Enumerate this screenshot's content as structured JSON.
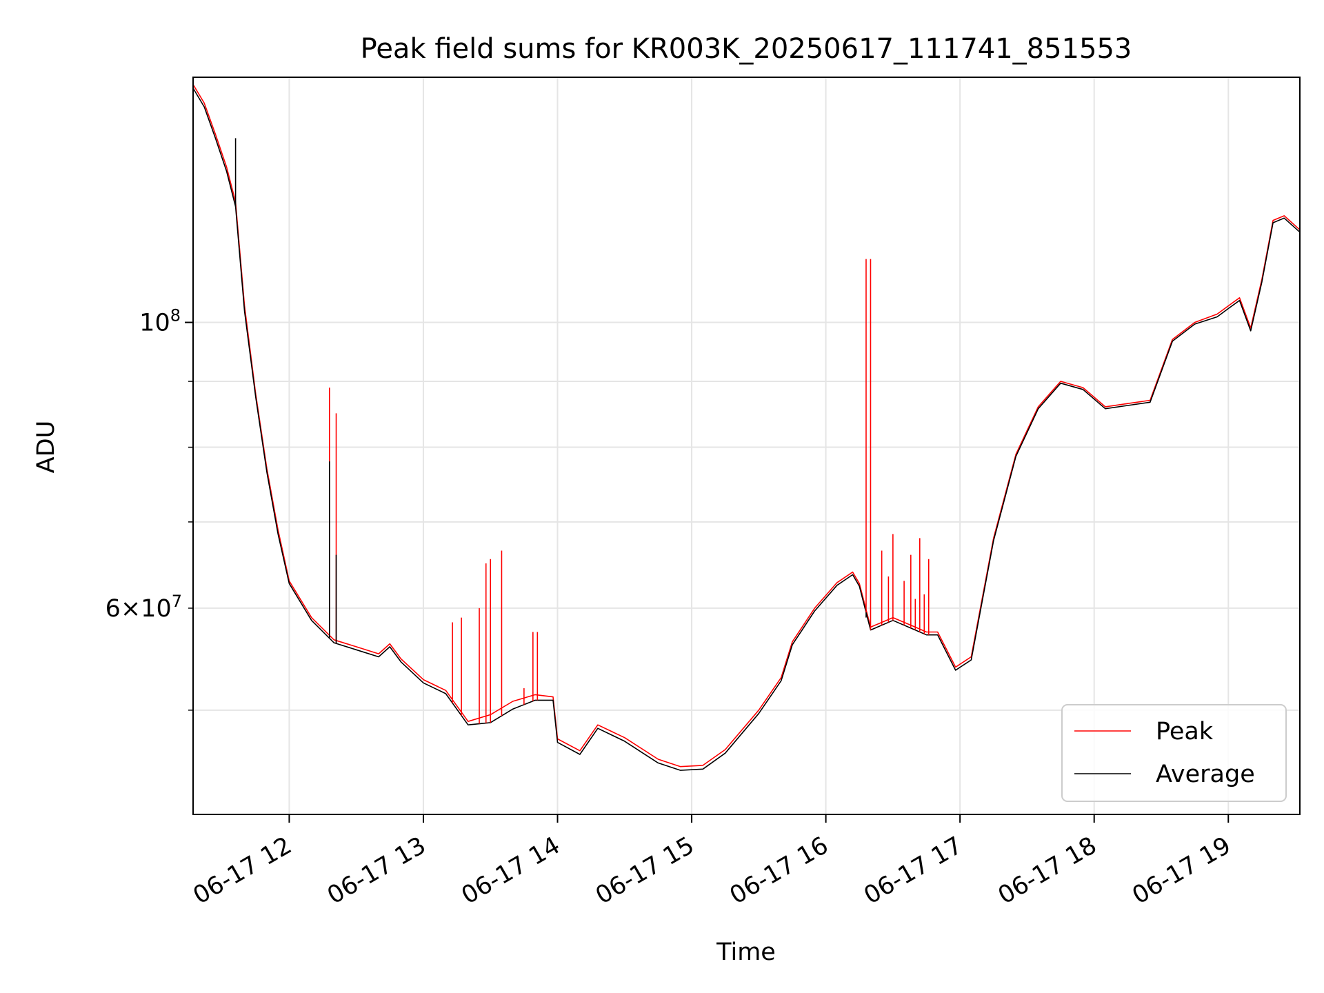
{
  "chart_data": {
    "type": "line",
    "title": "Peak field sums for KR003K_20250617_111741_851553",
    "xlabel": "Time",
    "ylabel": "ADU",
    "x_range": [
      "2025-06-17 11:17",
      "2025-06-17 19:32"
    ],
    "y_scale": "log",
    "ylim": [
      41500000,
      155000000
    ],
    "x_ticks": [
      {
        "label": "06-17 12",
        "value": "2025-06-17 12:00"
      },
      {
        "label": "06-17 13",
        "value": "2025-06-17 13:00"
      },
      {
        "label": "06-17 14",
        "value": "2025-06-17 14:00"
      },
      {
        "label": "06-17 15",
        "value": "2025-06-17 15:00"
      },
      {
        "label": "06-17 16",
        "value": "2025-06-17 16:00"
      },
      {
        "label": "06-17 17",
        "value": "2025-06-17 17:00"
      },
      {
        "label": "06-17 18",
        "value": "2025-06-17 18:00"
      },
      {
        "label": "06-17 19",
        "value": "2025-06-17 19:00"
      }
    ],
    "y_major_ticks": [
      {
        "label_base": "10",
        "label_exp": "8",
        "value": 100000000
      }
    ],
    "y_labeled_minor_ticks": [
      {
        "label_coef": "6",
        "label_base": "10",
        "label_exp": "7",
        "value": 60000000
      }
    ],
    "y_minor_ticks": [
      50000000,
      70000000,
      80000000,
      90000000
    ],
    "grid": true,
    "legend_position": "bottom-right",
    "series": [
      {
        "name": "Peak",
        "color": "#ff0000",
        "x": [
          "2025-06-17 11:17",
          "2025-06-17 11:22",
          "2025-06-17 11:27",
          "2025-06-17 11:32",
          "2025-06-17 11:36",
          "2025-06-17 11:40",
          "2025-06-17 11:45",
          "2025-06-17 11:50",
          "2025-06-17 11:55",
          "2025-06-17 12:00",
          "2025-06-17 12:10",
          "2025-06-17 12:20",
          "2025-06-17 12:30",
          "2025-06-17 12:40",
          "2025-06-17 12:45",
          "2025-06-17 12:50",
          "2025-06-17 13:00",
          "2025-06-17 13:10",
          "2025-06-17 13:20",
          "2025-06-17 13:30",
          "2025-06-17 13:40",
          "2025-06-17 13:50",
          "2025-06-17 13:58",
          "2025-06-17 14:00",
          "2025-06-17 14:10",
          "2025-06-17 14:18",
          "2025-06-17 14:30",
          "2025-06-17 14:45",
          "2025-06-17 14:55",
          "2025-06-17 15:05",
          "2025-06-17 15:15",
          "2025-06-17 15:30",
          "2025-06-17 15:40",
          "2025-06-17 15:45",
          "2025-06-17 15:55",
          "2025-06-17 16:05",
          "2025-06-17 16:12",
          "2025-06-17 16:15",
          "2025-06-17 16:20",
          "2025-06-17 16:30",
          "2025-06-17 16:40",
          "2025-06-17 16:45",
          "2025-06-17 16:50",
          "2025-06-17 16:58",
          "2025-06-17 17:05",
          "2025-06-17 17:15",
          "2025-06-17 17:25",
          "2025-06-17 17:35",
          "2025-06-17 17:45",
          "2025-06-17 17:55",
          "2025-06-17 18:05",
          "2025-06-17 18:15",
          "2025-06-17 18:25",
          "2025-06-17 18:35",
          "2025-06-17 18:45",
          "2025-06-17 18:55",
          "2025-06-17 19:00",
          "2025-06-17 19:05",
          "2025-06-17 19:10",
          "2025-06-17 19:15",
          "2025-06-17 19:20",
          "2025-06-17 19:25",
          "2025-06-17 19:32"
        ],
        "values": [
          153000000,
          148000000,
          140000000,
          132000000,
          124000000,
          103000000,
          88000000,
          77000000,
          69000000,
          63000000,
          59000000,
          56700000,
          56000000,
          55300000,
          56300000,
          54800000,
          52800000,
          51800000,
          49000000,
          49600000,
          50800000,
          51400000,
          51200000,
          47500000,
          46500000,
          48700000,
          47600000,
          45800000,
          45200000,
          45300000,
          46600000,
          50000000,
          53000000,
          56500000,
          60000000,
          62800000,
          64000000,
          62700000,
          58000000,
          59000000,
          58000000,
          57500000,
          57500000,
          54000000,
          55000000,
          68000000,
          79000000,
          86000000,
          90000000,
          89000000,
          86000000,
          86500000,
          87000000,
          97000000,
          100000000,
          101500000,
          103000000,
          104500000,
          99000000,
          108000000,
          120000000,
          121000000,
          118000000
        ]
      },
      {
        "name": "Average",
        "color": "#000000",
        "x": [
          "2025-06-17 11:17",
          "2025-06-17 11:22",
          "2025-06-17 11:27",
          "2025-06-17 11:32",
          "2025-06-17 11:36",
          "2025-06-17 11:40",
          "2025-06-17 11:45",
          "2025-06-17 11:50",
          "2025-06-17 11:55",
          "2025-06-17 12:00",
          "2025-06-17 12:10",
          "2025-06-17 12:20",
          "2025-06-17 12:30",
          "2025-06-17 12:40",
          "2025-06-17 12:45",
          "2025-06-17 12:50",
          "2025-06-17 13:00",
          "2025-06-17 13:10",
          "2025-06-17 13:20",
          "2025-06-17 13:30",
          "2025-06-17 13:40",
          "2025-06-17 13:50",
          "2025-06-17 13:58",
          "2025-06-17 14:00",
          "2025-06-17 14:10",
          "2025-06-17 14:18",
          "2025-06-17 14:30",
          "2025-06-17 14:45",
          "2025-06-17 14:55",
          "2025-06-17 15:05",
          "2025-06-17 15:15",
          "2025-06-17 15:30",
          "2025-06-17 15:40",
          "2025-06-17 15:45",
          "2025-06-17 15:55",
          "2025-06-17 16:05",
          "2025-06-17 16:12",
          "2025-06-17 16:15",
          "2025-06-17 16:20",
          "2025-06-17 16:30",
          "2025-06-17 16:40",
          "2025-06-17 16:45",
          "2025-06-17 16:50",
          "2025-06-17 16:58",
          "2025-06-17 17:05",
          "2025-06-17 17:15",
          "2025-06-17 17:25",
          "2025-06-17 17:35",
          "2025-06-17 17:45",
          "2025-06-17 17:55",
          "2025-06-17 18:05",
          "2025-06-17 18:15",
          "2025-06-17 18:25",
          "2025-06-17 18:35",
          "2025-06-17 18:45",
          "2025-06-17 18:55",
          "2025-06-17 19:00",
          "2025-06-17 19:05",
          "2025-06-17 19:10",
          "2025-06-17 19:15",
          "2025-06-17 19:20",
          "2025-06-17 19:25",
          "2025-06-17 19:32"
        ],
        "values": [
          152000000,
          147000000,
          139000000,
          131000000,
          123000000,
          102000000,
          87500000,
          76500000,
          68500000,
          62700000,
          58700000,
          56400000,
          55700000,
          55000000,
          56000000,
          54500000,
          52500000,
          51500000,
          48700000,
          48900000,
          50100000,
          50900000,
          50900000,
          47200000,
          46200000,
          48400000,
          47300000,
          45500000,
          44900000,
          45000000,
          46300000,
          49700000,
          52700000,
          56200000,
          59700000,
          62500000,
          63700000,
          62400000,
          57700000,
          58700000,
          57700000,
          57200000,
          57200000,
          53700000,
          54700000,
          67700000,
          78700000,
          85700000,
          89700000,
          88700000,
          85700000,
          86200000,
          86700000,
          96700000,
          99700000,
          101000000,
          102500000,
          104000000,
          98500000,
          107500000,
          119500000,
          120500000,
          117500000
        ]
      }
    ],
    "spikes": {
      "color": "#ff0000",
      "items": [
        {
          "x": "2025-06-17 12:18",
          "y": 89000000
        },
        {
          "x": "2025-06-17 12:21",
          "y": 85000000
        },
        {
          "x": "2025-06-17 13:13",
          "y": 58500000
        },
        {
          "x": "2025-06-17 13:17",
          "y": 59000000
        },
        {
          "x": "2025-06-17 13:25",
          "y": 60000000
        },
        {
          "x": "2025-06-17 13:28",
          "y": 65000000
        },
        {
          "x": "2025-06-17 13:30",
          "y": 65500000
        },
        {
          "x": "2025-06-17 13:35",
          "y": 66500000
        },
        {
          "x": "2025-06-17 13:45",
          "y": 52000000
        },
        {
          "x": "2025-06-17 13:49",
          "y": 57500000
        },
        {
          "x": "2025-06-17 13:51",
          "y": 57500000
        },
        {
          "x": "2025-06-17 16:18",
          "y": 112000000
        },
        {
          "x": "2025-06-17 16:20",
          "y": 112000000
        },
        {
          "x": "2025-06-17 16:25",
          "y": 66500000
        },
        {
          "x": "2025-06-17 16:28",
          "y": 63500000
        },
        {
          "x": "2025-06-17 16:30",
          "y": 68500000
        },
        {
          "x": "2025-06-17 16:35",
          "y": 63000000
        },
        {
          "x": "2025-06-17 16:38",
          "y": 66000000
        },
        {
          "x": "2025-06-17 16:40",
          "y": 61000000
        },
        {
          "x": "2025-06-17 16:42",
          "y": 68000000
        },
        {
          "x": "2025-06-17 16:44",
          "y": 61500000
        },
        {
          "x": "2025-06-17 16:46",
          "y": 65500000
        }
      ]
    },
    "avg_spikes": {
      "color": "#000000",
      "items": [
        {
          "x": "2025-06-17 11:36",
          "y": 139000000
        },
        {
          "x": "2025-06-17 12:18",
          "y": 78000000
        },
        {
          "x": "2025-06-17 12:21",
          "y": 66000000
        },
        {
          "x": "2025-06-17 16:18",
          "y": 59000000
        }
      ]
    }
  }
}
